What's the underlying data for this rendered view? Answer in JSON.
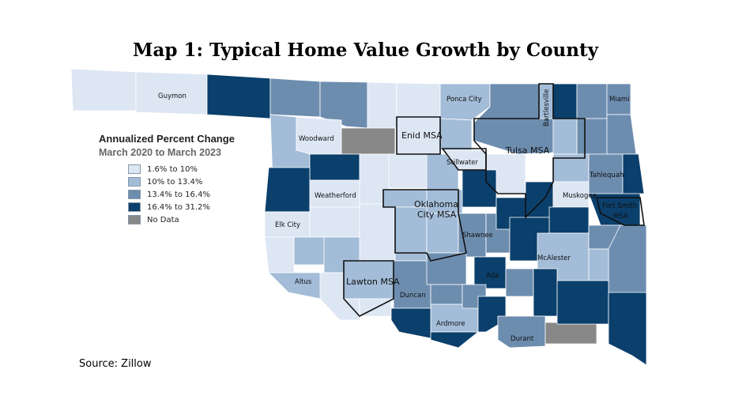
{
  "title": "Map 1: Typical Home Value Growth by County",
  "legend": {
    "title": "Annualized Percent Change",
    "subtitle": "March 2020 to March 2023",
    "items": [
      {
        "label": "1.6% to 10%",
        "color": "#dde6f3"
      },
      {
        "label": "10% to 13.4%",
        "color": "#a3bcd8"
      },
      {
        "label": "13.4% to 16.4%",
        "color": "#6d8daf"
      },
      {
        "label": "16.4% to 31.2%",
        "color": "#0b3f6c"
      },
      {
        "label": "No Data",
        "color": "#888888"
      }
    ]
  },
  "labels": {
    "guymon": "Guymon",
    "ponca_city": "Ponca City",
    "bartlesville": "Bartlesville",
    "miami": "Miami",
    "woodward": "Woodward",
    "enid_msa": "Enid MSA",
    "tulsa_msa": "Tulsa MSA",
    "stillwater": "Stillwater",
    "tahlequah": "Tahlequah",
    "weatherford": "Weatherford",
    "muskogee": "Muskogee",
    "okc_line1": "Oklahoma",
    "okc_line2": "City MSA",
    "fort_smith_line1": "Fort Smith",
    "fort_smith_line2": "MSA",
    "elk_city": "Elk City",
    "shawnee": "Shawnee",
    "mcalester": "McAlester",
    "ada": "Ada",
    "altus": "Altus",
    "lawton_msa": "Lawton MSA",
    "duncan": "Duncan",
    "ardmore": "Ardmore",
    "durant": "Durant"
  },
  "source": "Source: Zillow"
}
